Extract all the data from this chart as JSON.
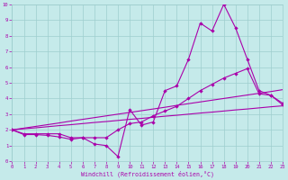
{
  "bg_color": "#c5eaea",
  "grid_color": "#9ecece",
  "line_color": "#aa00aa",
  "xlim": [
    0,
    23
  ],
  "ylim": [
    0,
    10
  ],
  "xticks": [
    0,
    1,
    2,
    3,
    4,
    5,
    6,
    7,
    8,
    9,
    10,
    11,
    12,
    13,
    14,
    15,
    16,
    17,
    18,
    19,
    20,
    21,
    22,
    23
  ],
  "yticks": [
    0,
    1,
    2,
    3,
    4,
    5,
    6,
    7,
    8,
    9,
    10
  ],
  "xlabel": "Windchill (Refroidissement éolien,°C)",
  "line1_x": [
    0,
    1,
    2,
    3,
    4,
    5,
    6,
    7,
    8,
    9,
    10,
    11,
    12,
    13,
    14,
    15,
    16,
    17,
    18,
    19,
    20,
    21,
    22,
    23
  ],
  "line1_y": [
    2.0,
    1.7,
    1.7,
    1.65,
    1.55,
    1.4,
    1.5,
    1.1,
    1.0,
    0.3,
    3.3,
    2.3,
    2.5,
    4.5,
    4.8,
    6.5,
    8.8,
    8.3,
    10.0,
    8.5,
    6.5,
    4.5,
    4.2,
    3.7
  ],
  "line2_x": [
    0,
    1,
    2,
    3,
    4,
    5,
    6,
    7,
    8,
    9,
    10,
    11,
    12,
    13,
    14,
    15,
    16,
    17,
    18,
    19,
    20,
    21,
    22,
    23
  ],
  "line2_y": [
    2.0,
    1.75,
    1.75,
    1.75,
    1.75,
    1.5,
    1.5,
    1.5,
    1.5,
    2.0,
    2.4,
    2.5,
    2.9,
    3.2,
    3.5,
    4.0,
    4.5,
    4.9,
    5.3,
    5.6,
    5.9,
    4.3,
    4.2,
    3.6
  ],
  "line3_x": [
    0,
    1,
    2,
    3,
    4,
    5,
    6,
    7,
    8,
    9,
    10,
    11,
    12,
    13,
    14,
    15,
    16,
    17,
    18,
    19,
    20,
    21,
    22,
    23
  ],
  "line3_y": [
    2.0,
    2.07,
    2.13,
    2.2,
    2.27,
    2.33,
    2.4,
    2.47,
    2.53,
    2.6,
    2.67,
    2.73,
    2.8,
    2.87,
    2.93,
    3.0,
    3.07,
    3.13,
    3.2,
    3.27,
    3.33,
    3.4,
    3.47,
    3.53
  ],
  "line4_x": [
    0,
    1,
    2,
    3,
    4,
    5,
    6,
    7,
    8,
    9,
    10,
    11,
    12,
    13,
    14,
    15,
    16,
    17,
    18,
    19,
    20,
    21,
    22,
    23
  ],
  "line4_y": [
    2.0,
    2.11,
    2.22,
    2.33,
    2.44,
    2.56,
    2.67,
    2.78,
    2.89,
    3.0,
    3.11,
    3.22,
    3.33,
    3.44,
    3.56,
    3.67,
    3.78,
    3.89,
    4.0,
    4.11,
    4.22,
    4.33,
    4.44,
    4.56
  ]
}
